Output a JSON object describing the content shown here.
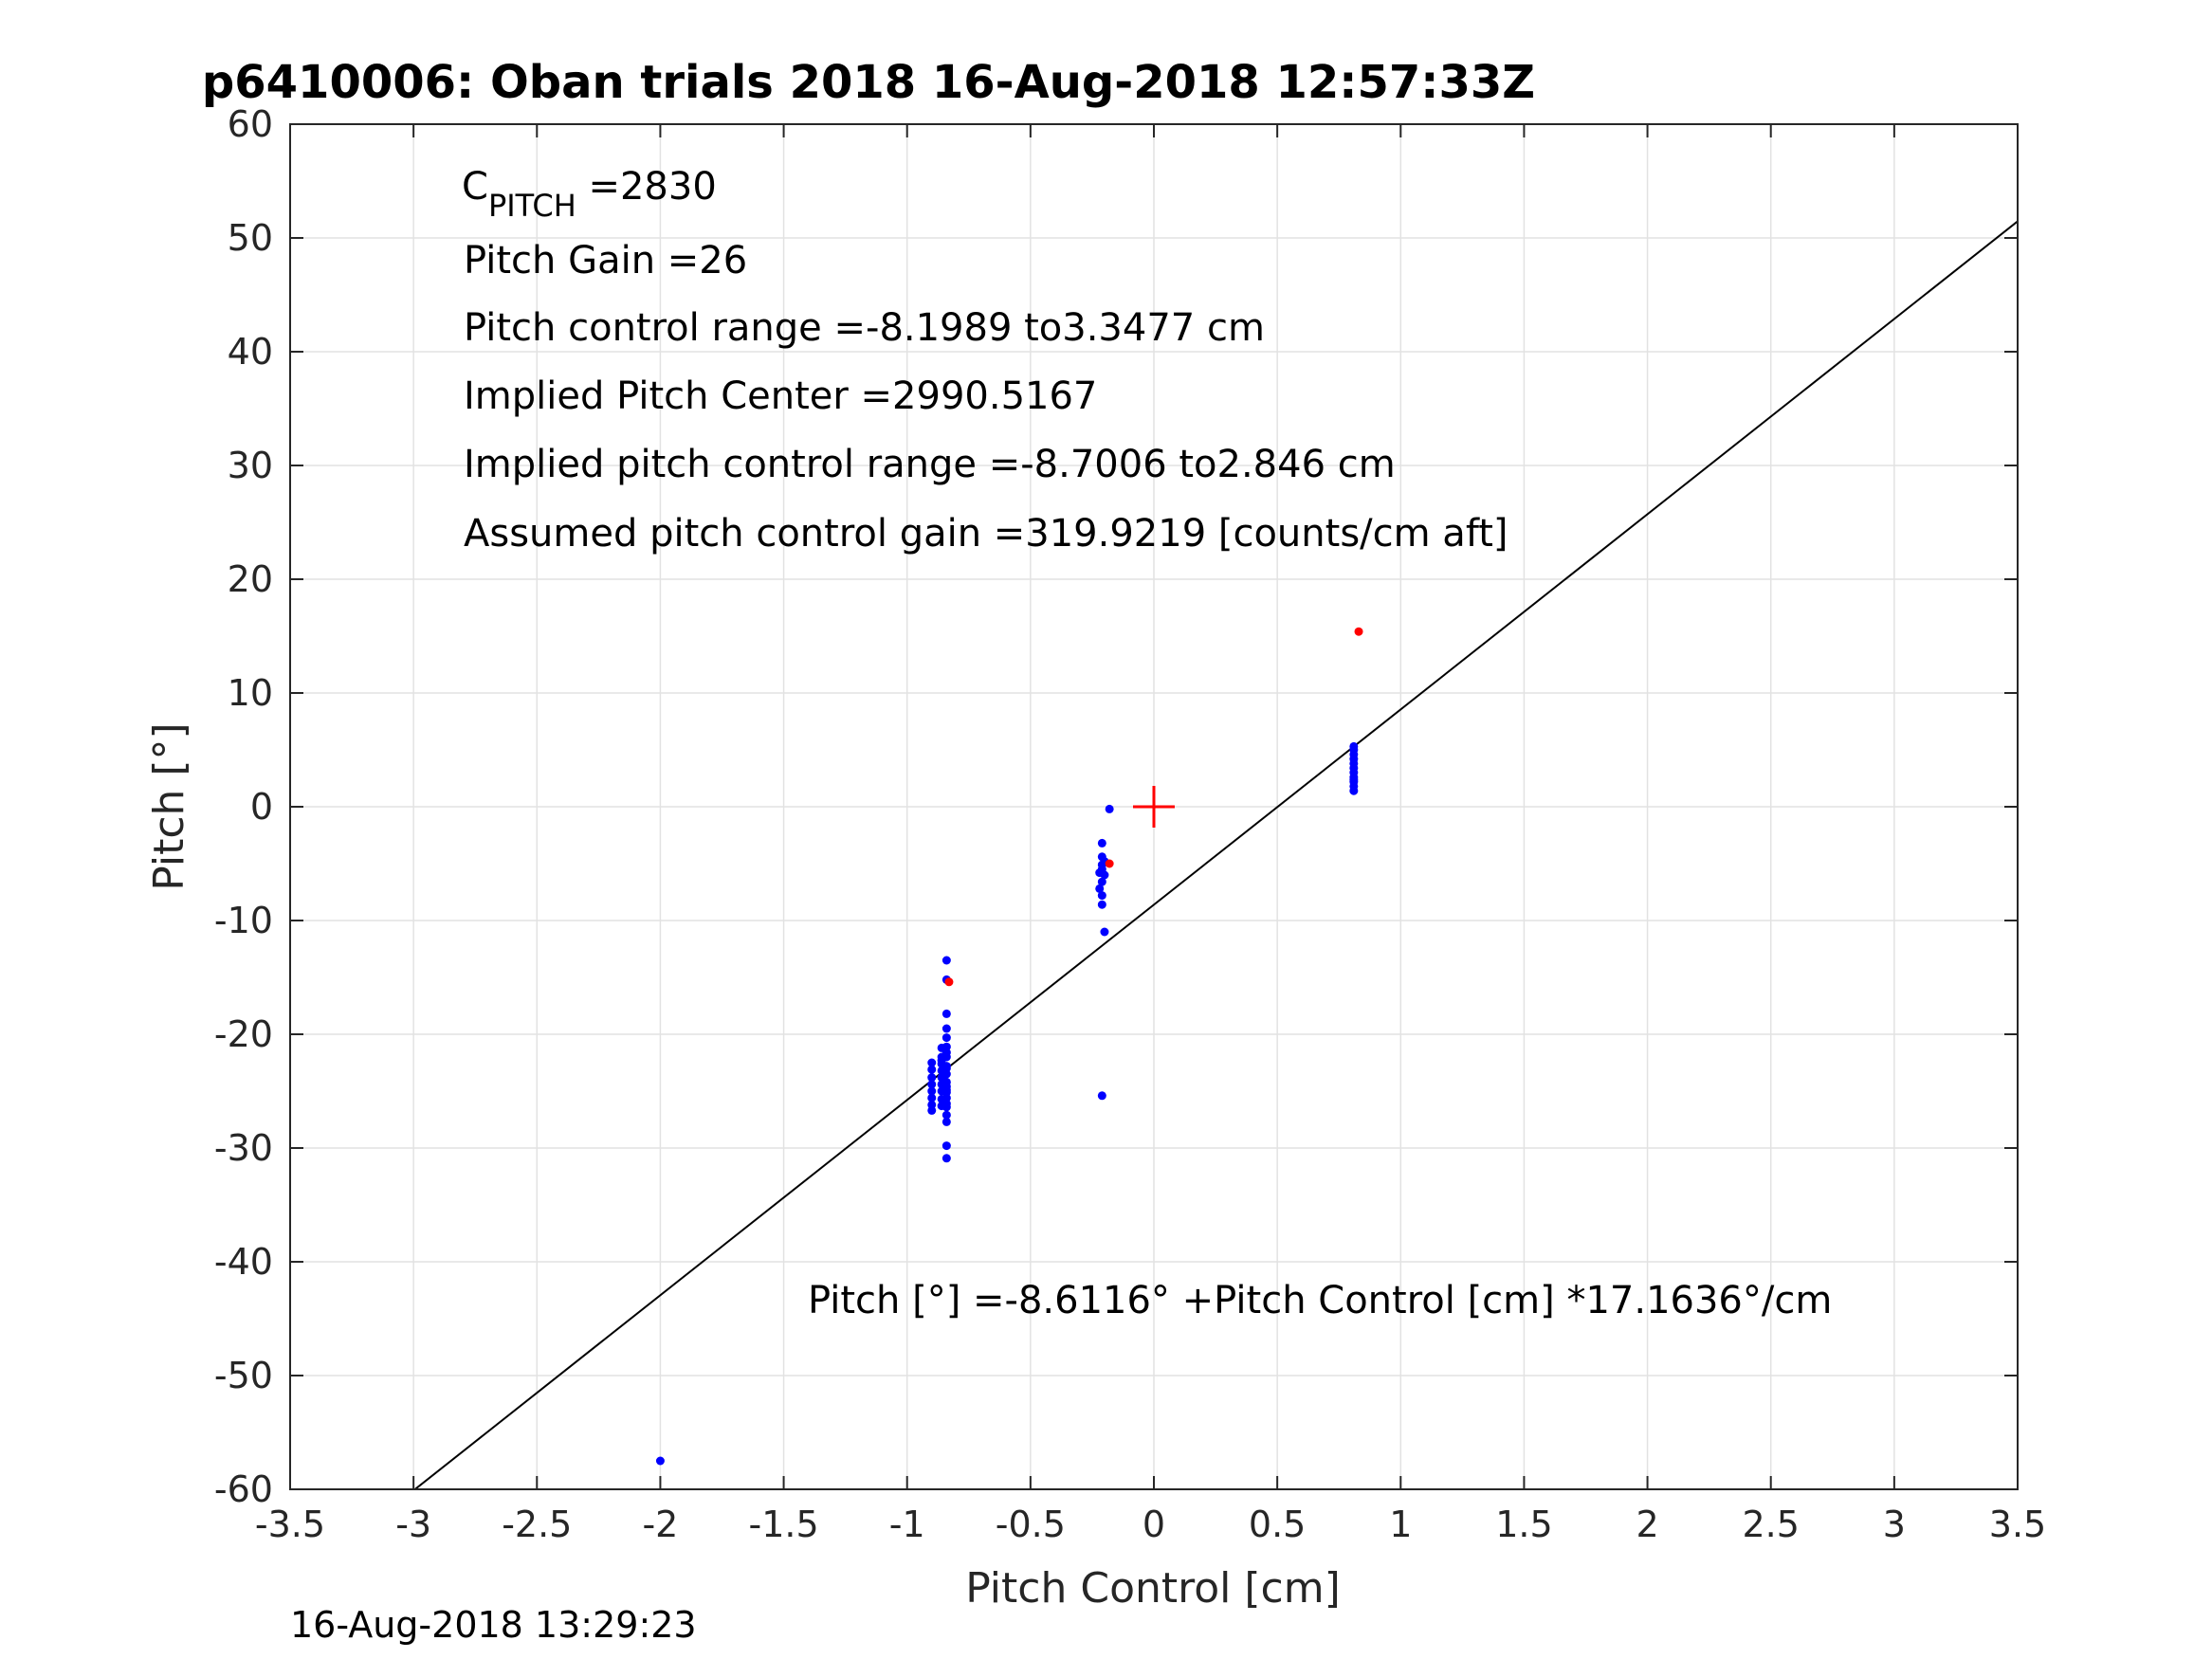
{
  "chart_data": {
    "type": "scatter",
    "title": "p6410006: Oban trials 2018 16-Aug-2018 12:57:33Z",
    "xlabel": "Pitch Control [cm]",
    "ylabel": "Pitch [°]",
    "xlim": [
      -3.5,
      3.5
    ],
    "ylim": [
      -60,
      60
    ],
    "grid": true,
    "x_ticks": [
      -3.5,
      -3,
      -2.5,
      -2,
      -1.5,
      -1,
      -0.5,
      0,
      0.5,
      1,
      1.5,
      2,
      2.5,
      3,
      3.5
    ],
    "x_tick_labels": [
      "-3.5",
      "-3",
      "-2.5",
      "-2",
      "-1.5",
      "-1",
      "-0.5",
      "0",
      "0.5",
      "1",
      "1.5",
      "2",
      "2.5",
      "3",
      "3.5"
    ],
    "y_ticks": [
      60,
      50,
      40,
      30,
      20,
      10,
      0,
      -10,
      -20,
      -30,
      -40,
      -50,
      -60
    ],
    "y_tick_labels": [
      "60",
      "50",
      "40",
      "30",
      "20",
      "10",
      "0",
      "-10",
      "-20",
      "-30",
      "-40",
      "-50",
      "-60"
    ],
    "fit_line": {
      "intercept": -8.6116,
      "slope": 17.1636
    },
    "center_marker": {
      "x": 0,
      "y": 0,
      "color": "#ff0000"
    },
    "series": [
      {
        "name": "samples",
        "color": "#0000ff",
        "x": [
          -2.0,
          -0.21,
          -0.2,
          -0.21,
          -0.21,
          -0.22,
          -0.21,
          -0.2,
          -0.21,
          -0.22,
          -0.2,
          -0.21,
          -0.21,
          -0.18,
          -0.21,
          -0.84,
          -0.84,
          -0.84,
          -0.84,
          -0.84,
          -0.84,
          -0.84,
          -0.84,
          -0.84,
          -0.84,
          -0.84,
          -0.84,
          -0.84,
          -0.84,
          -0.84,
          -0.84,
          -0.84,
          -0.84,
          -0.84,
          -0.84,
          -0.84,
          -0.84,
          -0.86,
          -0.86,
          -0.86,
          -0.86,
          -0.86,
          -0.86,
          -0.86,
          -0.86,
          -0.86,
          -0.86,
          -0.9,
          -0.9,
          -0.9,
          -0.9,
          -0.9,
          -0.9,
          -0.9,
          -0.9,
          0.81,
          0.81,
          0.81,
          0.81,
          0.81,
          0.81,
          0.81,
          0.81,
          0.81,
          0.81,
          0.81,
          0.81
        ],
        "y": [
          -57.5,
          -25.4,
          -11,
          -8.6,
          -7.8,
          -7.2,
          -6.6,
          -6,
          -5.5,
          -5.8,
          -4.8,
          -4.4,
          -3.2,
          -0.2,
          -5.1,
          -13.5,
          -15.2,
          -18.2,
          -19.5,
          -20.3,
          -21.1,
          -22,
          -22.8,
          -23.5,
          -24.2,
          -24.9,
          -25.6,
          -26.4,
          -27.1,
          -27.7,
          -29.8,
          -30.9,
          -21.6,
          -23,
          -25.1,
          -26.1,
          -24.6,
          -21.2,
          -22,
          -22.6,
          -23.2,
          -23.8,
          -24.4,
          -25,
          -25.7,
          -26.3,
          -22.3,
          -22.5,
          -23.1,
          -23.8,
          -24.4,
          -25,
          -25.6,
          -26.2,
          -26.7,
          1.4,
          1.8,
          2.2,
          2.6,
          3,
          3.4,
          3.8,
          4.2,
          4.6,
          5,
          5.3,
          2.4
        ]
      },
      {
        "name": "highlighted",
        "color": "#ff0000",
        "x": [
          0.83,
          -0.18,
          -0.83
        ],
        "y": [
          15.4,
          -5.0,
          -15.4
        ]
      }
    ],
    "annotations": {
      "c_pitch_symbol": "C",
      "c_pitch_subscript": "PITCH",
      "c_pitch_value": " =2830",
      "pitch_gain": "Pitch Gain =26",
      "pitch_control_range": "Pitch control range =-8.1989 to3.3477 cm",
      "implied_pitch_center": "Implied Pitch Center =2990.5167",
      "implied_pitch_control_range": "Implied pitch control range =-8.7006 to2.846 cm",
      "assumed_gain": "Assumed pitch control gain =319.9219 [counts/cm aft]",
      "fit_equation": "Pitch [°] =-8.6116° +Pitch Control [cm] *17.1636°/cm"
    },
    "timestamp": "16-Aug-2018 13:29:23"
  }
}
